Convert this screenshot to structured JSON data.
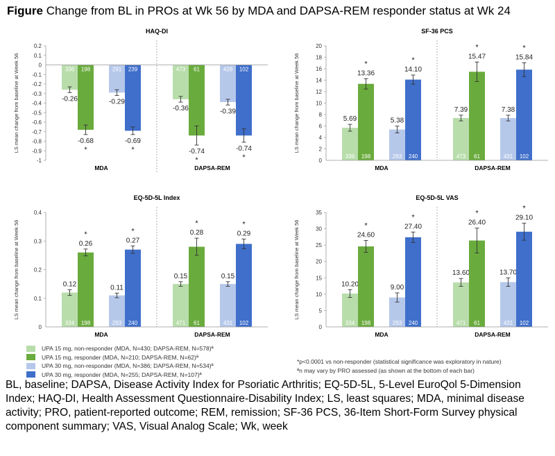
{
  "figure": {
    "label": "Figure",
    "title": "Change from BL in PROs at Wk 56 by MDA and DAPSA-REM responder status at Wk 24"
  },
  "colors": {
    "upa15_nonresponder": "#b8ddab",
    "upa15_responder": "#6aab3d",
    "upa30_nonresponder": "#b6c8ea",
    "upa30_responder": "#3f6fcb",
    "n_label_text": "#ffffff",
    "divider": "#999999"
  },
  "legend": [
    {
      "series": "upa15_nonresponder",
      "label": "UPA 15 mg, non-responder (MDA, N=430; DAPSA-REM, N=578)ª"
    },
    {
      "series": "upa15_responder",
      "label": "UPA 15 mg, responder (MDA, N=210; DAPSA-REM, N=62)ª"
    },
    {
      "series": "upa30_nonresponder",
      "label": "UPA 30 mg, non-responder (MDA, N=386; DAPSA-REM, N=534)ª"
    },
    {
      "series": "upa30_responder",
      "label": "UPA 30 mg, responder (MDA, N=255; DAPSA-REM, N=107)ª"
    }
  ],
  "footnotes": [
    "*p<0.0001 vs non-responder (statistical significance was exploratory in nature)",
    "ªn may vary by PRO assessed (as shown at the bottom of each bar)"
  ],
  "abbreviations": "BL, baseline; DAPSA, Disease Activity Index for Psoriatic Arthritis; EQ-5D-5L, 5-Level EuroQol 5-Dimension Index; HAQ-DI, Health Assessment Questionnaire-Disability Index; LS, least squares; MDA, minimal disease activity; PRO, patient-reported outcome; REM, remission; SF-36 PCS, 36-Item Short-Form Survey physical component summary; VAS, Visual Analog Scale; Wk, week",
  "chart_data": [
    {
      "type": "bar",
      "title": "HAQ-DI",
      "ylabel": "LS mean change from baseline at Week 56",
      "ylim": [
        -1,
        0.2
      ],
      "yticks": [
        "0.2",
        "0.1",
        "0",
        "-0.1",
        "-0.2",
        "-0.3",
        "-0.4",
        "-0.5",
        "-0.6",
        "-0.7",
        "-0.8",
        "-0.9",
        "-1"
      ],
      "categories": [
        "MDA",
        "DAPSA-REM"
      ],
      "negative": true,
      "groups": [
        {
          "bars": [
            {
              "series": "upa15_nonresponder",
              "value": -0.26,
              "label": "-0.26",
              "n": "336",
              "err": 0.03,
              "sig": false
            },
            {
              "series": "upa15_responder",
              "value": -0.68,
              "label": "-0.68",
              "n": "198",
              "err": 0.05,
              "sig": true
            },
            {
              "series": "upa30_nonresponder",
              "value": -0.29,
              "label": "-0.29",
              "n": "291",
              "err": 0.03,
              "sig": false
            },
            {
              "series": "upa30_responder",
              "value": -0.69,
              "label": "-0.69",
              "n": "239",
              "err": 0.04,
              "sig": true
            }
          ]
        },
        {
          "bars": [
            {
              "series": "upa15_nonresponder",
              "value": -0.36,
              "label": "-0.36",
              "n": "473",
              "err": 0.03,
              "sig": false
            },
            {
              "series": "upa15_responder",
              "value": -0.74,
              "label": "-0.74",
              "n": "61",
              "err": 0.1,
              "sig": true
            },
            {
              "series": "upa30_nonresponder",
              "value": -0.39,
              "label": "-0.39",
              "n": "428",
              "err": 0.03,
              "sig": false
            },
            {
              "series": "upa30_responder",
              "value": -0.74,
              "label": "-0.74",
              "n": "102",
              "err": 0.07,
              "sig": true
            }
          ]
        }
      ]
    },
    {
      "type": "bar",
      "title": "SF-36 PCS",
      "ylabel": "LS mean change from baseline at Week 56",
      "ylim": [
        0,
        20
      ],
      "yticks": [
        "20",
        "18",
        "16",
        "14",
        "12",
        "10",
        "8",
        "6",
        "4",
        "2",
        "0"
      ],
      "categories": [
        "MDA",
        "DAPSA-REM"
      ],
      "negative": false,
      "groups": [
        {
          "bars": [
            {
              "series": "upa15_nonresponder",
              "value": 5.69,
              "label": "5.69",
              "n": "336",
              "err": 0.6,
              "sig": false
            },
            {
              "series": "upa15_responder",
              "value": 13.36,
              "label": "13.36",
              "n": "198",
              "err": 0.9,
              "sig": true
            },
            {
              "series": "upa30_nonresponder",
              "value": 5.38,
              "label": "5.38",
              "n": "293",
              "err": 0.6,
              "sig": false
            },
            {
              "series": "upa30_responder",
              "value": 14.1,
              "label": "14.10",
              "n": "240",
              "err": 0.8,
              "sig": true
            }
          ]
        },
        {
          "bars": [
            {
              "series": "upa15_nonresponder",
              "value": 7.39,
              "label": "7.39",
              "n": "473",
              "err": 0.5,
              "sig": false
            },
            {
              "series": "upa15_responder",
              "value": 15.47,
              "label": "15.47",
              "n": "61",
              "err": 1.7,
              "sig": true
            },
            {
              "series": "upa30_nonresponder",
              "value": 7.38,
              "label": "7.38",
              "n": "431",
              "err": 0.5,
              "sig": false
            },
            {
              "series": "upa30_responder",
              "value": 15.84,
              "label": "15.84",
              "n": "102",
              "err": 1.2,
              "sig": true
            }
          ]
        }
      ]
    },
    {
      "type": "bar",
      "title": "EQ-5D-5L Index",
      "ylabel": "LS mean change from baseline at Week 56",
      "ylim": [
        0,
        0.4
      ],
      "yticks": [
        "0.4",
        "0.3",
        "0.2",
        "0.1",
        "0"
      ],
      "categories": [
        "MDA",
        "DAPSA-REM"
      ],
      "negative": false,
      "groups": [
        {
          "bars": [
            {
              "series": "upa15_nonresponder",
              "value": 0.12,
              "label": "0.12",
              "n": "334",
              "err": 0.01,
              "sig": false
            },
            {
              "series": "upa15_responder",
              "value": 0.26,
              "label": "0.26",
              "n": "198",
              "err": 0.012,
              "sig": true
            },
            {
              "series": "upa30_nonresponder",
              "value": 0.11,
              "label": "0.11",
              "n": "293",
              "err": 0.008,
              "sig": false
            },
            {
              "series": "upa30_responder",
              "value": 0.27,
              "label": "0.27",
              "n": "240",
              "err": 0.013,
              "sig": true
            }
          ]
        },
        {
          "bars": [
            {
              "series": "upa15_nonresponder",
              "value": 0.15,
              "label": "0.15",
              "n": "471",
              "err": 0.008,
              "sig": false
            },
            {
              "series": "upa15_responder",
              "value": 0.28,
              "label": "0.28",
              "n": "61",
              "err": 0.03,
              "sig": true
            },
            {
              "series": "upa30_nonresponder",
              "value": 0.15,
              "label": "0.15",
              "n": "431",
              "err": 0.008,
              "sig": false
            },
            {
              "series": "upa30_responder",
              "value": 0.29,
              "label": "0.29",
              "n": "102",
              "err": 0.017,
              "sig": true
            }
          ]
        }
      ]
    },
    {
      "type": "bar",
      "title": "EQ-5D-5L VAS",
      "ylabel": "LS mean change from baseline at Week 56",
      "ylim": [
        0,
        35
      ],
      "yticks": [
        "35",
        "30",
        "25",
        "20",
        "15",
        "10",
        "5",
        "0"
      ],
      "categories": [
        "MDA",
        "DAPSA-REM"
      ],
      "negative": false,
      "groups": [
        {
          "bars": [
            {
              "series": "upa15_nonresponder",
              "value": 10.2,
              "label": "10.20",
              "n": "334",
              "err": 1.2,
              "sig": false
            },
            {
              "series": "upa15_responder",
              "value": 24.6,
              "label": "24.60",
              "n": "198",
              "err": 1.8,
              "sig": true
            },
            {
              "series": "upa30_nonresponder",
              "value": 9.0,
              "label": "9.00",
              "n": "293",
              "err": 1.4,
              "sig": false
            },
            {
              "series": "upa30_responder",
              "value": 27.4,
              "label": "27.40",
              "n": "240",
              "err": 1.6,
              "sig": true
            }
          ]
        },
        {
          "bars": [
            {
              "series": "upa15_nonresponder",
              "value": 13.6,
              "label": "13.60",
              "n": "471",
              "err": 1.2,
              "sig": false
            },
            {
              "series": "upa15_responder",
              "value": 26.4,
              "label": "26.40",
              "n": "61",
              "err": 3.8,
              "sig": true
            },
            {
              "series": "upa30_nonresponder",
              "value": 13.7,
              "label": "13.70",
              "n": "431",
              "err": 1.3,
              "sig": false
            },
            {
              "series": "upa30_responder",
              "value": 29.1,
              "label": "29.10",
              "n": "102",
              "err": 2.6,
              "sig": true
            }
          ]
        }
      ]
    }
  ]
}
